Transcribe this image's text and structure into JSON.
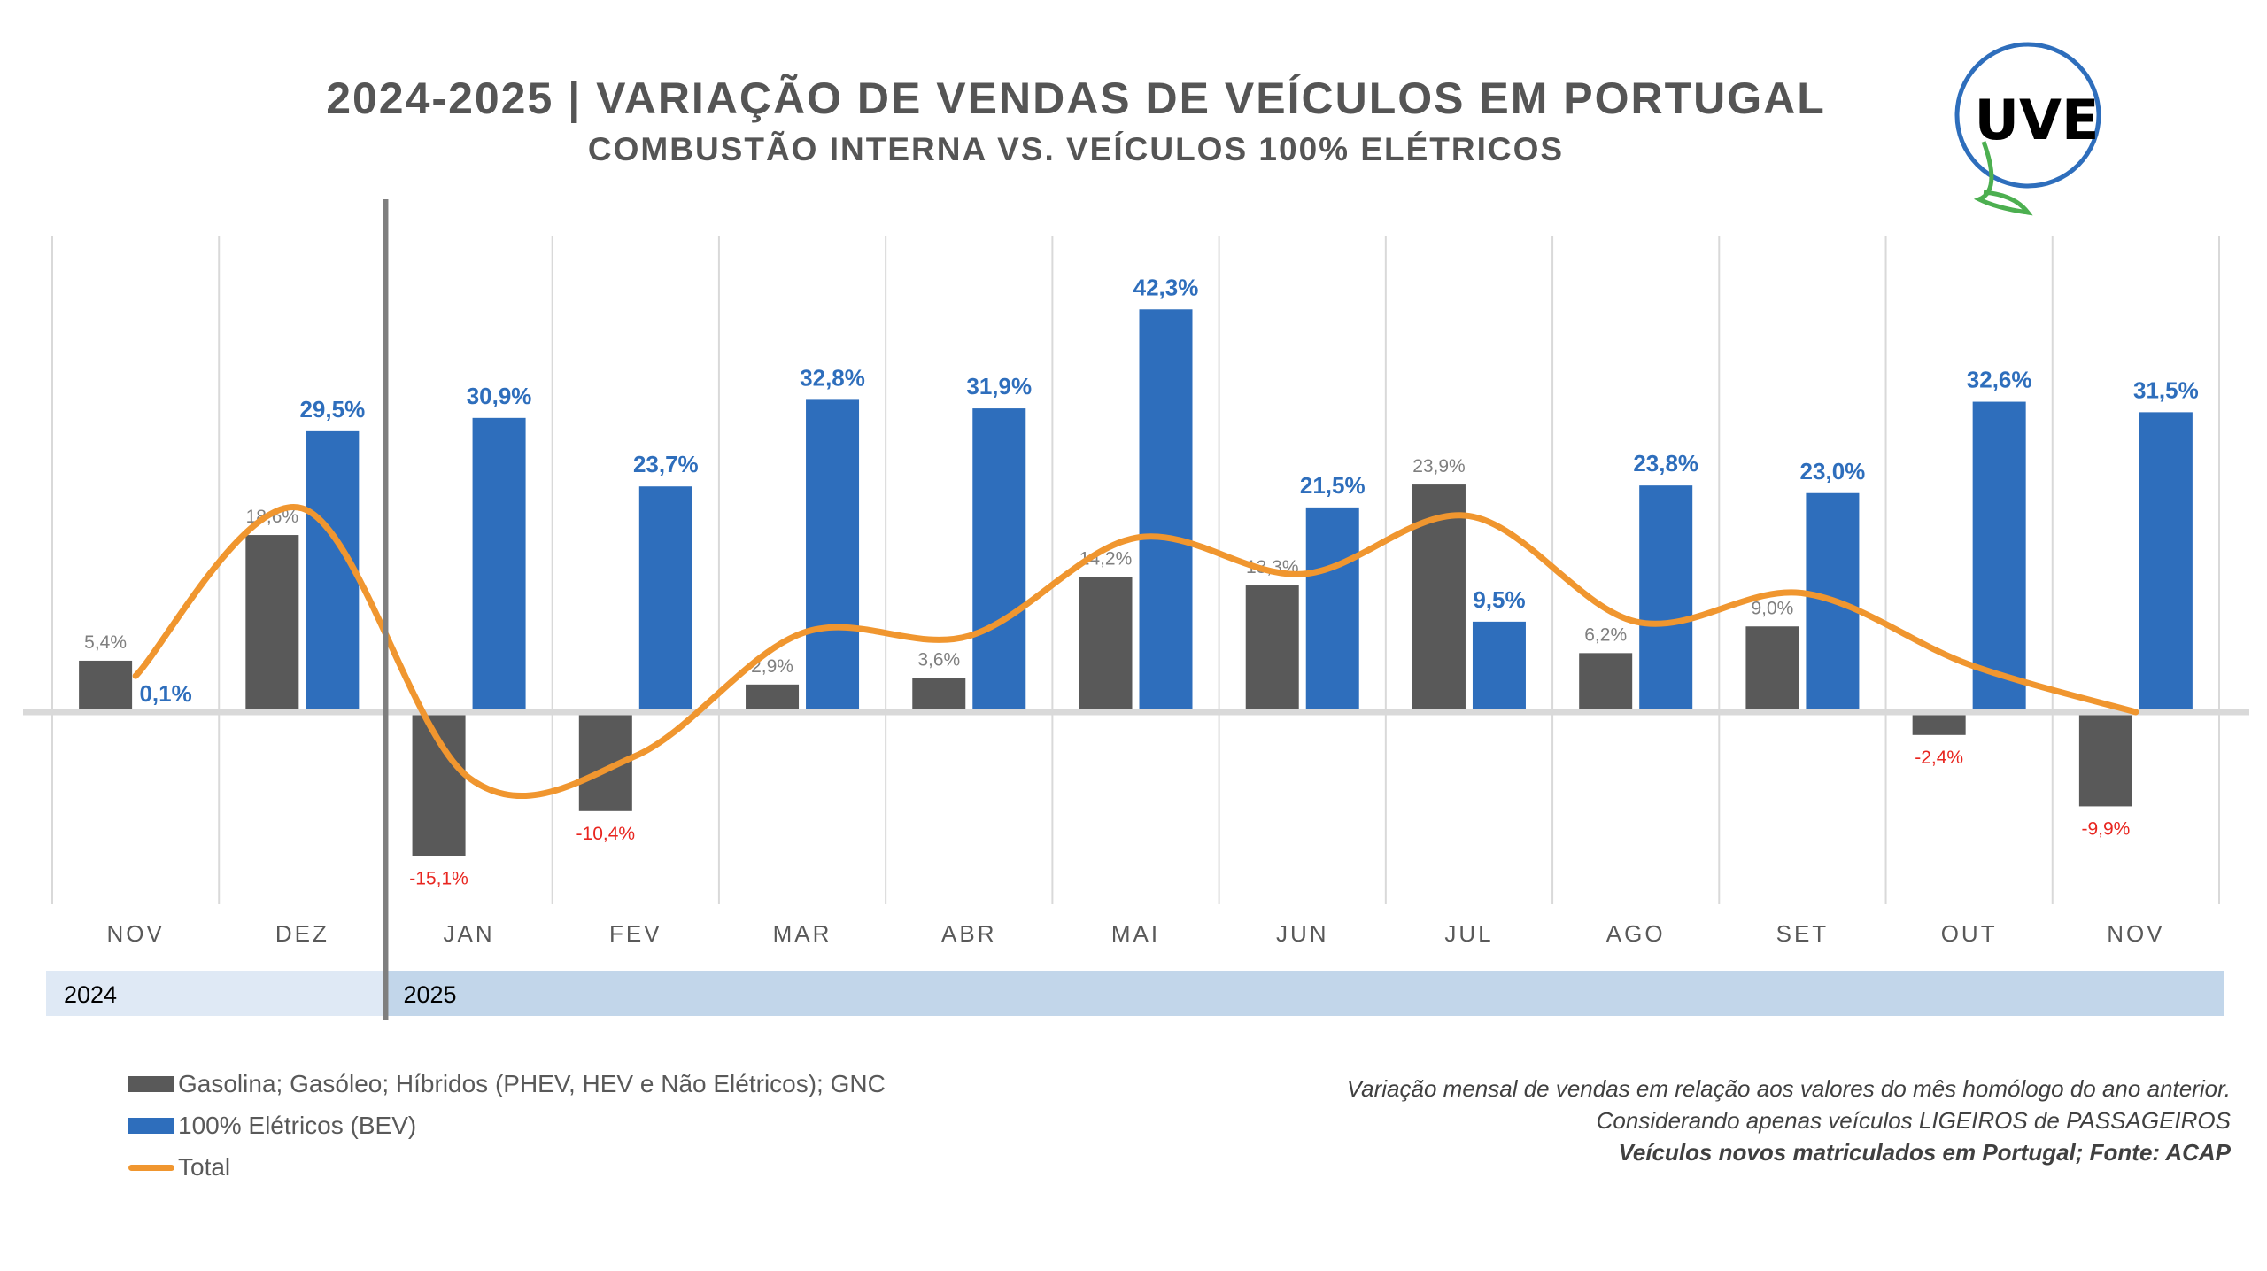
{
  "header": {
    "title": "2024-2025 | VARIAÇÃO DE VENDAS DE VEÍCULOS EM PORTUGAL",
    "subtitle": "COMBUSTÃO INTERNA VS. VEÍCULOS 100% ELÉTRICOS"
  },
  "logo": {
    "text": "UVE"
  },
  "chart_data": {
    "type": "bar",
    "title": "2024-2025 | VARIAÇÃO DE VENDAS DE VEÍCULOS EM PORTUGAL",
    "categories": [
      "NOV",
      "DEZ",
      "JAN",
      "FEV",
      "MAR",
      "ABR",
      "MAI",
      "JUN",
      "JUL",
      "AGO",
      "SET",
      "OUT",
      "NOV"
    ],
    "years": [
      {
        "label": "2024",
        "span": 2
      },
      {
        "label": "2025",
        "span": 11
      }
    ],
    "ylim": [
      -20,
      50
    ],
    "grid": "vertical",
    "series": [
      {
        "name": "Gasolina; Gasóleo; Híbridos (PHEV, HEV e Não Elétricos); GNC",
        "type": "bar",
        "color": "#595959",
        "values": [
          5.4,
          18.6,
          -15.1,
          -10.4,
          2.9,
          3.6,
          14.2,
          13.3,
          23.9,
          6.2,
          9.0,
          -2.4,
          -9.9
        ],
        "labels": [
          "5,4%",
          "18,6%",
          "-15,1%",
          "-10,4%",
          "2,9%",
          "3,6%",
          "14,2%",
          "13,3%",
          "23,9%",
          "6,2%",
          "9,0%",
          "-2,4%",
          "-9,9%"
        ]
      },
      {
        "name": "100% Elétricos (BEV)",
        "type": "bar",
        "color": "#2e6ebc",
        "values": [
          0.1,
          29.5,
          30.9,
          23.7,
          32.8,
          31.9,
          42.3,
          21.5,
          9.5,
          23.8,
          23.0,
          32.6,
          31.5
        ],
        "labels": [
          "0,1%",
          "29,5%",
          "30,9%",
          "23,7%",
          "32,8%",
          "31,9%",
          "42,3%",
          "21,5%",
          "9,5%",
          "23,8%",
          "23,0%",
          "32,6%",
          "31,5%"
        ]
      },
      {
        "name": "Total",
        "type": "line",
        "color": "#f0962f",
        "values": [
          3.8,
          21.4,
          -6.9,
          -4.6,
          8.3,
          8.0,
          18.3,
          14.5,
          20.6,
          9.5,
          12.5,
          5.0,
          0.0
        ]
      }
    ],
    "negative_label_color": "#e8251f",
    "legend_position": "bottom-left"
  },
  "footer": {
    "line1": "Variação mensal de vendas em relação aos valores do mês homólogo do ano anterior.",
    "line2": "Considerando apenas veículos LIGEIROS de PASSAGEIROS",
    "line3": "Veículos novos matriculados em Portugal; Fonte: ACAP"
  }
}
